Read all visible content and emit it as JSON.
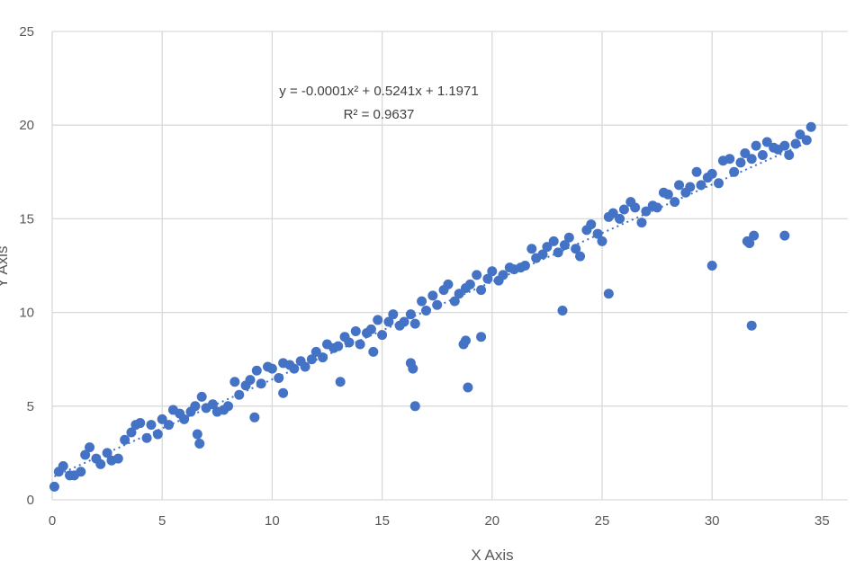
{
  "chart_data": {
    "type": "scatter",
    "xlabel": "X Axis",
    "ylabel": "Y Axis",
    "xlim": [
      0,
      36
    ],
    "ylim": [
      0,
      25
    ],
    "xticks": [
      0,
      5,
      10,
      15,
      20,
      25,
      30,
      35
    ],
    "yticks": [
      0,
      5,
      10,
      15,
      20,
      25
    ],
    "grid": true,
    "marker_color": "#4472C4",
    "trendline": {
      "type": "polynomial",
      "coefficients": [
        -0.0001,
        0.5241,
        1.1971
      ],
      "style": "dotted",
      "equation_label": "y = -0.0001x² + 0.5241x + 1.1971",
      "r2_label": "R² = 0.9637"
    },
    "x": [
      0.3,
      0.5,
      0.8,
      1.0,
      1.3,
      1.5,
      1.7,
      2.0,
      2.2,
      2.5,
      2.7,
      3.0,
      3.3,
      3.6,
      3.8,
      4.0,
      4.3,
      4.5,
      4.8,
      5.0,
      5.3,
      5.5,
      5.8,
      6.0,
      6.3,
      6.5,
      6.8,
      7.0,
      7.3,
      7.5,
      7.8,
      8.0,
      8.3,
      8.5,
      8.8,
      9.0,
      9.3,
      9.5,
      9.8,
      10.0,
      10.3,
      10.5,
      10.8,
      11.0,
      11.3,
      11.5,
      11.8,
      12.0,
      12.3,
      12.5,
      12.8,
      13.0,
      13.3,
      13.5,
      13.8,
      14.0,
      14.3,
      14.5,
      14.8,
      15.0,
      15.3,
      15.5,
      15.8,
      16.0,
      16.3,
      16.5,
      16.8,
      17.0,
      17.3,
      17.5,
      17.8,
      18.0,
      18.3,
      18.5,
      18.8,
      19.0,
      19.3,
      19.5,
      19.8,
      20.0,
      20.3,
      20.5,
      20.8,
      21.0,
      21.3,
      21.5,
      21.8,
      22.0,
      22.3,
      22.5,
      22.8,
      23.0,
      23.3,
      23.5,
      23.8,
      24.0,
      24.3,
      24.5,
      24.8,
      25.0,
      25.3,
      25.5,
      25.8,
      26.0,
      26.3,
      26.5,
      26.8,
      27.0,
      27.3,
      27.5,
      27.8,
      28.0,
      28.3,
      28.5,
      28.8,
      29.0,
      29.3,
      29.5,
      29.8,
      30.0,
      30.3,
      30.5,
      30.8,
      31.0,
      31.3,
      31.5,
      31.8,
      32.0,
      32.3,
      32.5,
      32.8,
      33.0,
      33.3,
      33.5,
      33.8,
      34.0,
      34.3,
      34.5,
      0.1,
      6.6,
      6.7,
      9.2,
      10.5,
      13.1,
      14.6,
      16.3,
      16.4,
      16.5,
      18.7,
      18.8,
      18.9,
      19.5,
      23.2,
      25.3,
      30.0,
      31.6,
      31.7,
      31.9,
      31.8,
      33.3
    ],
    "y": [
      1.5,
      1.8,
      1.3,
      1.3,
      1.5,
      2.4,
      2.8,
      2.2,
      1.9,
      2.5,
      2.1,
      2.2,
      3.2,
      3.6,
      4.0,
      4.1,
      3.3,
      4.0,
      3.5,
      4.3,
      4.0,
      4.8,
      4.6,
      4.3,
      4.7,
      5.0,
      5.5,
      4.9,
      5.1,
      4.7,
      4.8,
      5.0,
      6.3,
      5.6,
      6.1,
      6.4,
      6.9,
      6.2,
      7.1,
      7.0,
      6.5,
      7.3,
      7.2,
      7.0,
      7.4,
      7.1,
      7.5,
      7.9,
      7.6,
      8.3,
      8.1,
      8.2,
      8.7,
      8.4,
      9.0,
      8.3,
      8.9,
      9.1,
      9.6,
      8.8,
      9.5,
      9.9,
      9.3,
      9.5,
      9.9,
      9.4,
      10.6,
      10.1,
      10.9,
      10.4,
      11.2,
      11.5,
      10.6,
      11.0,
      11.3,
      11.5,
      12.0,
      11.2,
      11.8,
      12.2,
      11.7,
      12.0,
      12.4,
      12.3,
      12.4,
      12.5,
      13.4,
      12.9,
      13.1,
      13.5,
      13.8,
      13.2,
      13.6,
      14.0,
      13.4,
      13.0,
      14.4,
      14.7,
      14.2,
      13.8,
      15.1,
      15.3,
      15.0,
      15.5,
      15.9,
      15.6,
      14.8,
      15.4,
      15.7,
      15.6,
      16.4,
      16.3,
      15.9,
      16.8,
      16.4,
      16.7,
      17.5,
      16.8,
      17.2,
      17.4,
      16.9,
      18.1,
      18.2,
      17.5,
      18.0,
      18.5,
      18.2,
      18.9,
      18.4,
      19.1,
      18.8,
      18.7,
      18.9,
      18.4,
      19.0,
      19.5,
      19.2,
      19.9,
      0.7,
      3.5,
      3.0,
      4.4,
      5.7,
      6.3,
      7.9,
      7.3,
      7.0,
      5.0,
      8.3,
      8.5,
      6.0,
      8.7,
      10.1,
      11.0,
      12.5,
      13.8,
      13.7,
      14.1,
      9.3,
      14.1
    ]
  }
}
